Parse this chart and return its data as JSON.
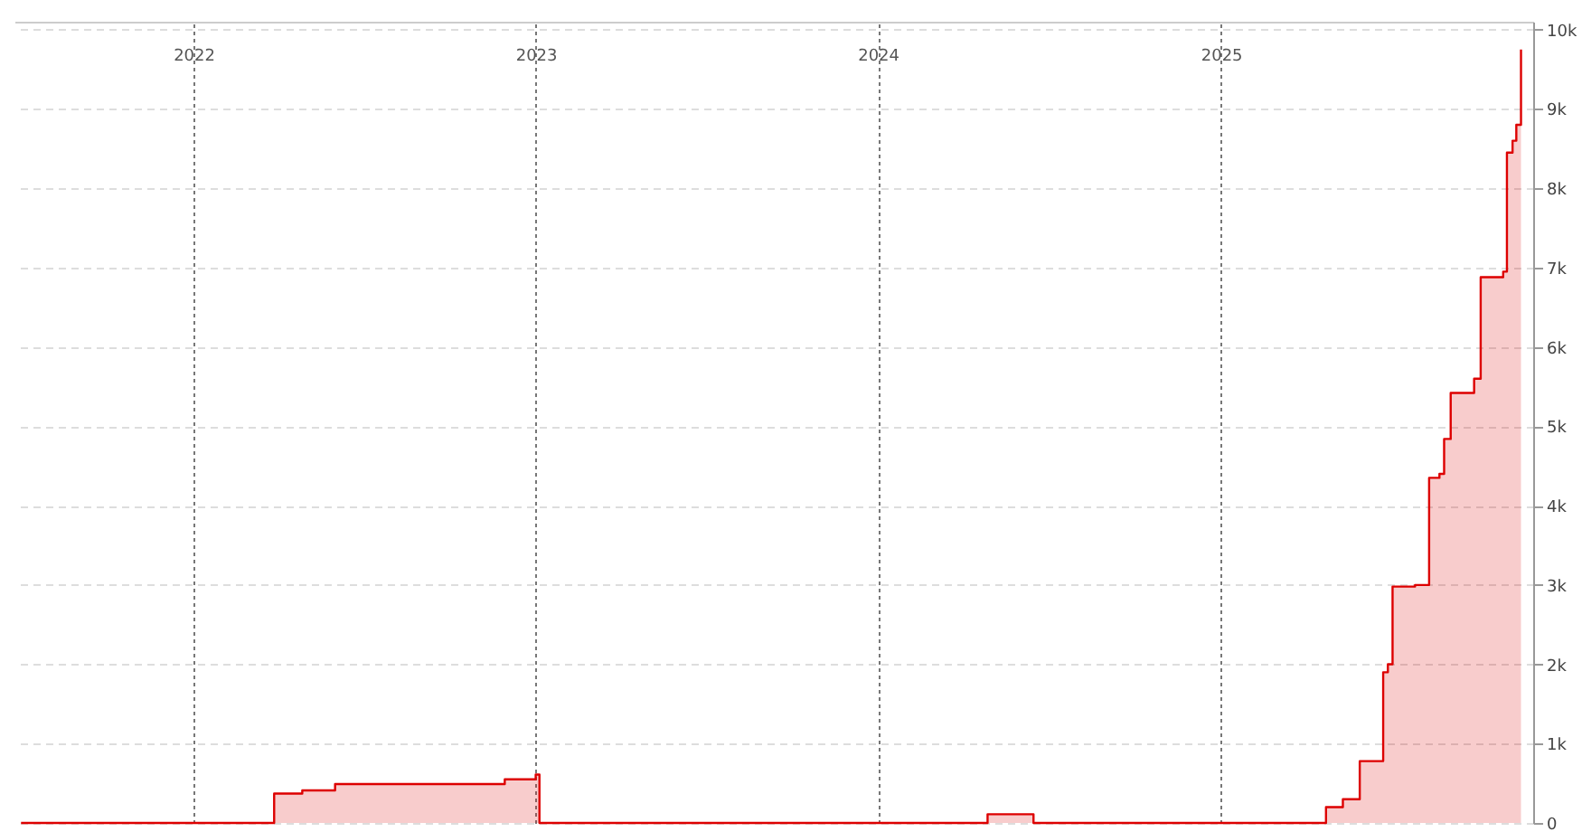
{
  "chart_data": {
    "type": "step",
    "x": [
      "2021-07-01",
      "2022-03-28",
      "2022-04-27",
      "2022-06-01",
      "2022-11-29",
      "2023-01-01",
      "2023-01-05",
      "2024-04-27",
      "2024-06-15",
      "2025-04-23",
      "2025-05-11",
      "2025-05-29",
      "2025-06-23",
      "2025-06-28",
      "2025-07-03",
      "2025-07-27",
      "2025-08-11",
      "2025-08-22",
      "2025-08-27",
      "2025-09-03",
      "2025-09-28",
      "2025-10-05",
      "2025-10-29",
      "2025-11-02",
      "2025-11-08",
      "2025-11-12",
      "2025-11-17"
    ],
    "series": [
      {
        "color": "#dd0000",
        "values": [
          0,
          370,
          410,
          490,
          550,
          610,
          0,
          110,
          0,
          200,
          300,
          780,
          1900,
          2000,
          2980,
          3000,
          4350,
          4400,
          4840,
          5420,
          5600,
          6880,
          6950,
          8450,
          8600,
          8800,
          9750
        ]
      }
    ],
    "xlim": [
      "2021-06-24",
      "2025-11-30"
    ],
    "xticks": [
      "2022",
      "2023",
      "2024",
      "2025"
    ],
    "ylim": [
      0,
      10100
    ],
    "yticks": [
      0,
      {
        "value": 1000,
        "label": "1k"
      },
      {
        "value": 2000,
        "label": "2k"
      },
      {
        "value": 3000,
        "label": "3k"
      },
      {
        "value": 4000,
        "label": "4k"
      },
      {
        "value": 5000,
        "label": "5k"
      },
      {
        "value": 6000,
        "label": "6k"
      },
      {
        "value": 7000,
        "label": "7k"
      },
      {
        "value": 8000,
        "label": "8k"
      },
      {
        "value": 9000,
        "label": "9k"
      },
      {
        "value": 10000,
        "label": "10k"
      }
    ],
    "grid": true
  }
}
